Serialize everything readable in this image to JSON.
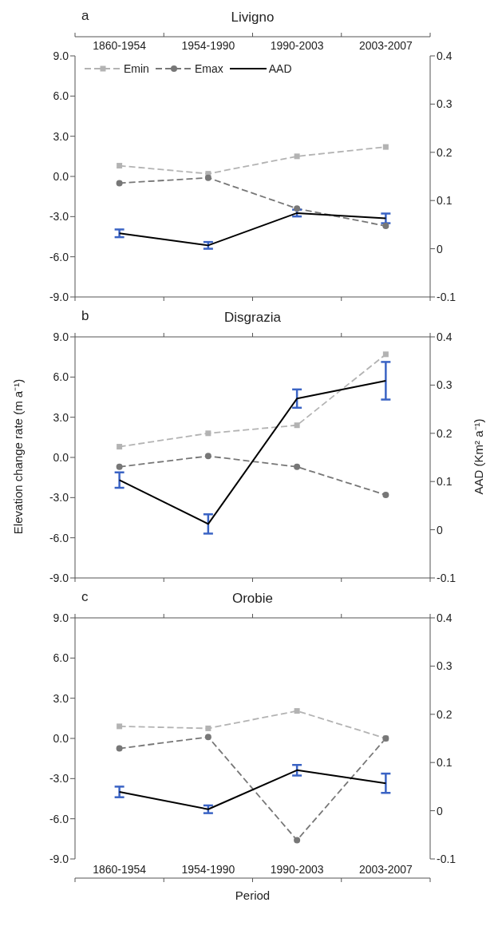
{
  "chart_data": [
    {
      "type": "line",
      "title": "Livigno",
      "annotations": [
        "a"
      ],
      "categories": [
        "1860-1954",
        "1954-1990",
        "1990-2003",
        "2003-2007"
      ],
      "ylim": [
        -9,
        9
      ],
      "yticks": [
        {
          "value": -9,
          "label": "-9.0"
        },
        {
          "value": -6,
          "label": "-6.0"
        },
        {
          "value": -3,
          "label": "-3.0"
        },
        {
          "value": 0,
          "label": "0.0"
        },
        {
          "value": 3,
          "label": "3.0"
        },
        {
          "value": 6,
          "label": "6.0"
        },
        {
          "value": 9,
          "label": "9.0"
        }
      ],
      "y2lim": [
        -0.1,
        0.4
      ],
      "y2ticks": [
        -0.1,
        0,
        0.1,
        0.2,
        0.3,
        0.4
      ],
      "legend": "top left",
      "series": [
        {
          "name": "Emin",
          "color": "#b3b3b3",
          "marker": "square",
          "line_style": "dashed",
          "values": [
            0.8,
            0.2,
            1.5,
            2.2
          ]
        },
        {
          "name": "Emax",
          "color": "#777777",
          "marker": "circle",
          "line_style": "dashed",
          "values": [
            -0.5,
            -0.1,
            -2.4,
            -3.7
          ]
        },
        {
          "name": "AAD",
          "color": "#000000",
          "marker": "none",
          "line_style": "solid",
          "axis": "y2",
          "values": [
            0.032,
            0.007,
            0.074,
            0.063
          ],
          "errors": [
            0.008,
            0.007,
            0.007,
            0.01
          ]
        }
      ]
    },
    {
      "type": "line",
      "title": "Disgrazia",
      "annotations": [
        "b"
      ],
      "ylabel": "Elevation change rate (m a⁻¹)",
      "y2label": "AAD (Km² a⁻¹)",
      "tick_labels": "y",
      "categories": [
        null,
        null,
        null,
        null
      ],
      "ylim": [
        -9,
        9
      ],
      "yticks": [
        {
          "value": -9,
          "label": "-9.0"
        },
        {
          "value": -6,
          "label": "-6.0"
        },
        {
          "value": -3,
          "label": "-3.0"
        },
        {
          "value": 0,
          "label": "0.0"
        },
        {
          "value": 3,
          "label": "3.0"
        },
        {
          "value": 6,
          "label": "6.0"
        },
        {
          "value": 9,
          "label": "9.0"
        }
      ],
      "y2lim": [
        -0.1,
        0.4
      ],
      "y2ticks": [
        -0.1,
        0,
        0.1,
        0.2,
        0.3,
        0.4
      ],
      "series": [
        {
          "color": "#b3b3b3",
          "marker": "square",
          "line_style": "dashed",
          "values": [
            0.8,
            1.8,
            2.4,
            7.7
          ]
        },
        {
          "color": "#777777",
          "marker": "circle",
          "line_style": "dashed",
          "values": [
            -0.7,
            0.1,
            -0.7,
            -2.8
          ]
        },
        {
          "color": "#000000",
          "marker": "none",
          "line_style": "solid",
          "axis": "y2",
          "values": [
            0.103,
            0.012,
            0.272,
            0.309
          ],
          "errors": [
            0.016,
            0.02,
            0.019,
            0.039
          ]
        }
      ]
    },
    {
      "type": "line",
      "title": "Orobie",
      "annotations": [
        "c"
      ],
      "xlabel": "Period",
      "categories": [
        "1860-1954",
        "1954-1990",
        "1990-2003",
        "2003-2007"
      ],
      "ylim": [
        -9,
        9
      ],
      "yticks": [
        {
          "value": -9,
          "label": "-9.0"
        },
        {
          "value": -6,
          "label": "-6.0"
        },
        {
          "value": -3,
          "label": "-3.0"
        },
        {
          "value": 0,
          "label": "0.0"
        },
        {
          "value": 3,
          "label": "3.0"
        },
        {
          "value": 6,
          "label": "6.0"
        },
        {
          "value": 9,
          "label": "9.0"
        }
      ],
      "y2lim": [
        -0.1,
        0.4
      ],
      "y2ticks": [
        -0.1,
        0,
        0.1,
        0.2,
        0.3,
        0.4
      ],
      "series": [
        {
          "color": "#b3b3b3",
          "marker": "square",
          "line_style": "dashed",
          "values": [
            0.9,
            0.75,
            2.05,
            0
          ]
        },
        {
          "color": "#777777",
          "marker": "circle",
          "line_style": "dashed",
          "values": [
            -0.75,
            0.1,
            -7.6,
            0
          ]
        },
        {
          "color": "#000000",
          "marker": "none",
          "line_style": "solid",
          "axis": "y2",
          "values": [
            0.039,
            0.003,
            0.084,
            0.057
          ],
          "errors": [
            0.011,
            0.008,
            0.011,
            0.02
          ]
        }
      ]
    }
  ]
}
